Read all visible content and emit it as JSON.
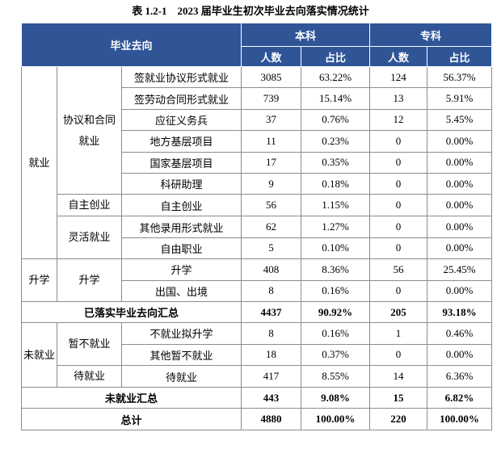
{
  "title": "表 1.2-1　2023 届毕业生初次毕业去向落实情况统计",
  "table": {
    "header": {
      "destination": "毕业去向",
      "groups": [
        {
          "name": "本科",
          "columns": [
            "人数",
            "占比"
          ]
        },
        {
          "name": "专科",
          "columns": [
            "人数",
            "占比"
          ]
        }
      ]
    },
    "sections": [
      {
        "label": "就业",
        "subgroups": [
          {
            "label": "协议和合同就业",
            "rows": [
              {
                "item": "签就业协议形式就业",
                "cells": [
                  "3085",
                  "63.22%",
                  "124",
                  "56.37%"
                ]
              },
              {
                "item": "签劳动合同形式就业",
                "cells": [
                  "739",
                  "15.14%",
                  "13",
                  "5.91%"
                ]
              },
              {
                "item": "应征义务兵",
                "cells": [
                  "37",
                  "0.76%",
                  "12",
                  "5.45%"
                ]
              },
              {
                "item": "地方基层项目",
                "cells": [
                  "11",
                  "0.23%",
                  "0",
                  "0.00%"
                ]
              },
              {
                "item": "国家基层项目",
                "cells": [
                  "17",
                  "0.35%",
                  "0",
                  "0.00%"
                ]
              },
              {
                "item": "科研助理",
                "cells": [
                  "9",
                  "0.18%",
                  "0",
                  "0.00%"
                ]
              }
            ]
          },
          {
            "label": "自主创业",
            "rows": [
              {
                "item": "自主创业",
                "cells": [
                  "56",
                  "1.15%",
                  "0",
                  "0.00%"
                ]
              }
            ]
          },
          {
            "label": "灵活就业",
            "rows": [
              {
                "item": "其他录用形式就业",
                "cells": [
                  "62",
                  "1.27%",
                  "0",
                  "0.00%"
                ]
              },
              {
                "item": "自由职业",
                "cells": [
                  "5",
                  "0.10%",
                  "0",
                  "0.00%"
                ]
              }
            ]
          }
        ]
      },
      {
        "label": "升学",
        "subgroups": [
          {
            "label": "升学",
            "rows": [
              {
                "item": "升学",
                "cells": [
                  "408",
                  "8.36%",
                  "56",
                  "25.45%"
                ]
              },
              {
                "item": "出国、出境",
                "cells": [
                  "8",
                  "0.16%",
                  "0",
                  "0.00%"
                ]
              }
            ]
          }
        ]
      },
      {
        "summary": "已落实毕业去向汇总",
        "cells": [
          "4437",
          "90.92%",
          "205",
          "93.18%"
        ]
      },
      {
        "label": "未就业",
        "subgroups": [
          {
            "label": "暂不就业",
            "rows": [
              {
                "item": "不就业拟升学",
                "cells": [
                  "8",
                  "0.16%",
                  "1",
                  "0.46%"
                ]
              },
              {
                "item": "其他暂不就业",
                "cells": [
                  "18",
                  "0.37%",
                  "0",
                  "0.00%"
                ]
              }
            ]
          },
          {
            "label": "待就业",
            "rows": [
              {
                "item": "待就业",
                "cells": [
                  "417",
                  "8.55%",
                  "14",
                  "6.36%"
                ]
              }
            ]
          }
        ]
      },
      {
        "summary": "未就业汇总",
        "cells": [
          "443",
          "9.08%",
          "15",
          "6.82%"
        ]
      },
      {
        "summary": "总计",
        "cells": [
          "4880",
          "100.00%",
          "220",
          "100.00%"
        ]
      }
    ]
  }
}
